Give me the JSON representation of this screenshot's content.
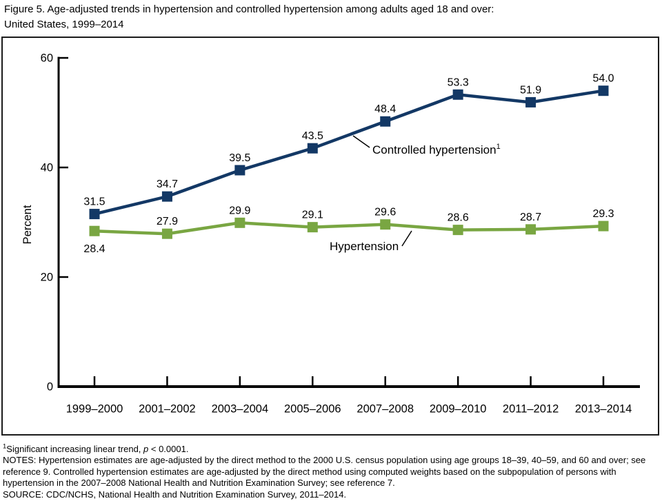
{
  "title": "Figure 5. Age-adjusted trends in hypertension and controlled hypertension among adults aged 18 and over:\nUnited States, 1999–2014",
  "chart_data": {
    "type": "line",
    "categories": [
      "1999–2000",
      "2001–2002",
      "2003–2004",
      "2005–2006",
      "2007–2008",
      "2009–2010",
      "2011–2012",
      "2013–2014"
    ],
    "series": [
      {
        "name": "Controlled hypertension",
        "callout": "Controlled hypertension",
        "callout_sup": "1",
        "color": "#133865",
        "values": [
          31.5,
          34.7,
          39.5,
          43.5,
          48.4,
          53.3,
          51.9,
          54.0
        ]
      },
      {
        "name": "Hypertension",
        "callout": "Hypertension",
        "callout_sup": "",
        "color": "#79A642",
        "values": [
          28.4,
          27.9,
          29.9,
          29.1,
          29.6,
          28.6,
          28.7,
          29.3
        ]
      }
    ],
    "xlabel": "",
    "ylabel": "Percent",
    "ylim": [
      0,
      60
    ],
    "yticks": [
      0,
      20,
      40,
      60
    ],
    "grid": false,
    "marker": "square",
    "data_labels": true,
    "legend_position": "inline-callouts",
    "axis_color": "#000000"
  },
  "footnotes": {
    "fn1_sup": "1",
    "fn1_before_p": "Significant increasing linear trend, ",
    "fn1_p": "p",
    "fn1_after_p": " < 0.0001.",
    "notes": "NOTES: Hypertension estimates are age-adjusted by the direct method to the 2000 U.S. census population using age groups 18–39, 40–59, and 60 and over; see reference 9. Controlled hypertension estimates are age-adjusted by the direct method using computed weights based on the subpopulation of persons with hypertension in the 2007–2008 National Health and Nutrition Examination Survey; see reference 7.",
    "source": "SOURCE: CDC/NCHS, National Health and Nutrition Examination Survey, 2011–2014."
  }
}
